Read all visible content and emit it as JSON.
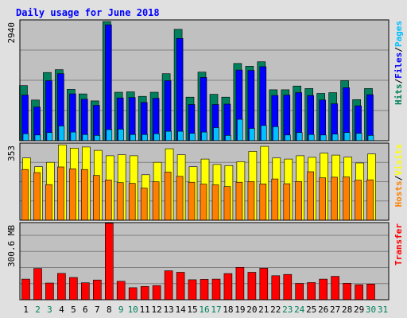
{
  "chart_data": [
    {
      "type": "bar",
      "title": "Daily usage for June 2018",
      "panel": "hits-files-pages",
      "ylabel_parts": [
        "Hits",
        "Files",
        "Pages"
      ],
      "ymax_label": "2940",
      "ylim": [
        0,
        2940
      ],
      "grid": true,
      "categories": [
        "1",
        "2",
        "3",
        "4",
        "5",
        "6",
        "7",
        "8",
        "9",
        "10",
        "11",
        "12",
        "13",
        "14",
        "15",
        "16",
        "17",
        "18",
        "19",
        "20",
        "21",
        "22",
        "23",
        "24",
        "25",
        "26",
        "27",
        "28",
        "29",
        "30",
        "31"
      ],
      "series": [
        {
          "name": "Hits",
          "color": "#00805c",
          "values": [
            1340,
            990,
            1660,
            1730,
            1250,
            1140,
            970,
            2900,
            1180,
            1190,
            1080,
            1180,
            1630,
            2710,
            1060,
            1670,
            1130,
            1060,
            1880,
            1810,
            1920,
            1240,
            1240,
            1330,
            1270,
            1150,
            1170,
            1460,
            1000,
            1270,
            0
          ]
        },
        {
          "name": "Files",
          "color": "#0000ff",
          "values": [
            1110,
            820,
            1460,
            1630,
            1140,
            1010,
            860,
            2820,
            1040,
            1050,
            930,
            1030,
            1460,
            2490,
            880,
            1540,
            880,
            890,
            1720,
            1710,
            1800,
            1100,
            1110,
            1170,
            1100,
            990,
            900,
            1290,
            850,
            1120,
            0
          ]
        },
        {
          "name": "Pages",
          "color": "#00c0ff",
          "values": [
            170,
            140,
            200,
            360,
            210,
            150,
            130,
            270,
            280,
            150,
            150,
            170,
            230,
            230,
            180,
            210,
            320,
            130,
            520,
            300,
            370,
            340,
            140,
            200,
            150,
            140,
            160,
            200,
            180,
            130,
            0
          ]
        }
      ]
    },
    {
      "type": "bar",
      "panel": "hosts-visits",
      "ylabel_parts": [
        "Hosts",
        "Visits"
      ],
      "ymax_label": "353",
      "ylim": [
        0,
        353
      ],
      "grid": true,
      "series": [
        {
          "name": "Visits",
          "color": "#ffff00",
          "values": [
            285,
            245,
            265,
            345,
            330,
            335,
            320,
            295,
            300,
            295,
            208,
            265,
            327,
            300,
            245,
            280,
            255,
            250,
            268,
            315,
            338,
            285,
            280,
            295,
            288,
            307,
            298,
            289,
            262,
            303,
            0
          ]
        },
        {
          "name": "Hosts",
          "color": "#ff8000",
          "values": [
            232,
            218,
            163,
            244,
            235,
            232,
            205,
            184,
            172,
            169,
            147,
            176,
            220,
            201,
            174,
            165,
            162,
            154,
            174,
            177,
            166,
            189,
            167,
            177,
            222,
            194,
            197,
            198,
            183,
            185,
            0
          ]
        }
      ]
    },
    {
      "type": "bar",
      "panel": "transfer",
      "ylabel_parts": [
        "Transfer"
      ],
      "ymax_label": "300.6 MB",
      "ylim": [
        0,
        360
      ],
      "grid": true,
      "series": [
        {
          "name": "Transfer",
          "color": "#ff0000",
          "values": [
            96,
            146,
            78,
            123,
            104,
            79,
            92,
            357,
            86,
            56,
            62,
            66,
            135,
            128,
            93,
            95,
            96,
            122,
            151,
            128,
            147,
            112,
            118,
            76,
            80,
            96,
            109,
            77,
            70,
            73,
            0
          ]
        }
      ]
    }
  ],
  "x_labels": {
    "days": [
      "1",
      "2",
      "3",
      "4",
      "5",
      "6",
      "7",
      "8",
      "9",
      "10",
      "11",
      "12",
      "13",
      "14",
      "15",
      "16",
      "17",
      "18",
      "19",
      "20",
      "21",
      "22",
      "23",
      "24",
      "25",
      "26",
      "27",
      "28",
      "29",
      "30",
      "31"
    ],
    "weekday_color": "#000000",
    "weekend_color": "#00805c",
    "weekend_days": [
      2,
      3,
      9,
      10,
      16,
      17,
      23,
      24,
      30,
      31
    ]
  },
  "colors": {
    "background": "#e0e0e0",
    "plot_background": "#c0c0c0",
    "title": "#0000ff",
    "grid": "#808080"
  }
}
